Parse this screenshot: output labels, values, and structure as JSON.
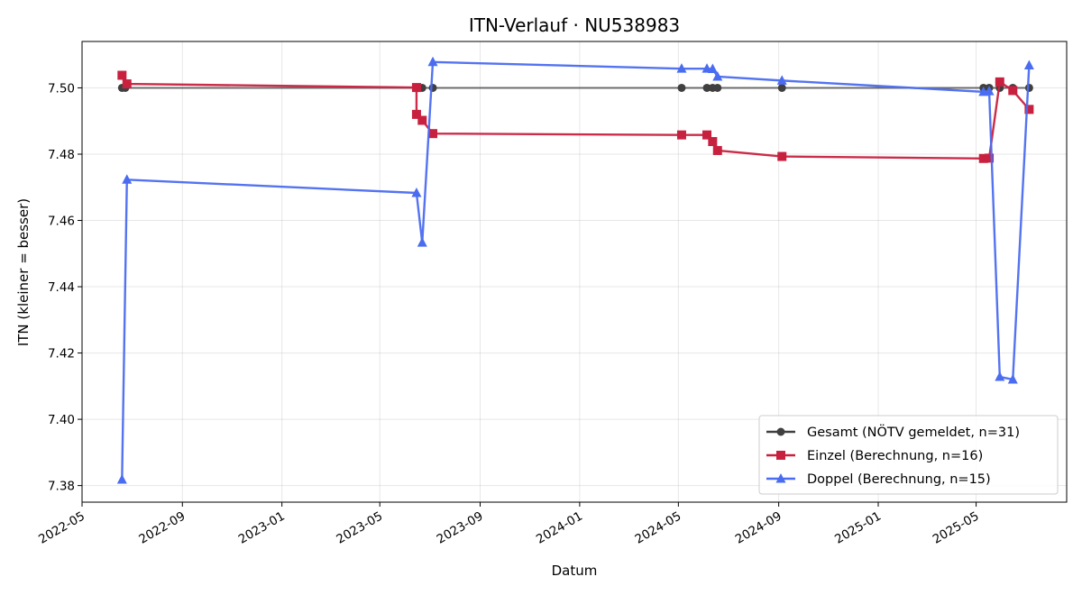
{
  "chart_data": {
    "type": "line",
    "title": "ITN-Verlauf · NU538983",
    "xlabel": "Datum",
    "ylabel": "ITN  (kleiner = besser)",
    "x_type": "date",
    "xlim": [
      "2022-05-01",
      "2025-08-20"
    ],
    "ylim": [
      7.375,
      7.514
    ],
    "x_ticks": [
      "2022-05",
      "2022-09",
      "2023-01",
      "2023-05",
      "2023-09",
      "2024-01",
      "2024-05",
      "2024-09",
      "2025-01",
      "2025-05"
    ],
    "y_ticks": [
      7.38,
      7.4,
      7.42,
      7.44,
      7.46,
      7.48,
      7.5
    ],
    "y_tick_labels": [
      "7.38",
      "7.40",
      "7.42",
      "7.44",
      "7.46",
      "7.48",
      "7.50"
    ],
    "grid": true,
    "legend_position": "bottom-right",
    "series": [
      {
        "name": "Gesamt (NÖTV gemeldet, n=31)",
        "color": "#404040",
        "marker": "circle",
        "points": [
          {
            "x": "2022-06-19",
            "y": 7.5
          },
          {
            "x": "2022-06-23",
            "y": 7.5
          },
          {
            "x": "2023-06-18",
            "y": 7.5
          },
          {
            "x": "2023-06-22",
            "y": 7.5
          },
          {
            "x": "2023-07-05",
            "y": 7.5
          },
          {
            "x": "2024-05-05",
            "y": 7.5
          },
          {
            "x": "2024-06-05",
            "y": 7.5
          },
          {
            "x": "2024-06-12",
            "y": 7.5
          },
          {
            "x": "2024-06-18",
            "y": 7.5
          },
          {
            "x": "2024-09-05",
            "y": 7.5
          },
          {
            "x": "2025-05-10",
            "y": 7.5
          },
          {
            "x": "2025-05-17",
            "y": 7.5
          },
          {
            "x": "2025-05-30",
            "y": 7.5
          },
          {
            "x": "2025-06-15",
            "y": 7.5
          },
          {
            "x": "2025-07-05",
            "y": 7.5
          }
        ]
      },
      {
        "name": "Einzel (Berechnung, n=16)",
        "color": "#c8213f",
        "marker": "square",
        "points": [
          {
            "x": "2022-06-19",
            "y": 7.5038
          },
          {
            "x": "2022-06-25",
            "y": 7.5012
          },
          {
            "x": "2023-06-15",
            "y": 7.5001
          },
          {
            "x": "2023-06-15",
            "y": 7.492
          },
          {
            "x": "2023-06-22",
            "y": 7.4902
          },
          {
            "x": "2023-07-05",
            "y": 7.4862
          },
          {
            "x": "2024-05-05",
            "y": 7.4858
          },
          {
            "x": "2024-06-05",
            "y": 7.4858
          },
          {
            "x": "2024-06-12",
            "y": 7.4838
          },
          {
            "x": "2024-06-18",
            "y": 7.4811
          },
          {
            "x": "2024-09-05",
            "y": 7.4793
          },
          {
            "x": "2025-05-10",
            "y": 7.4787
          },
          {
            "x": "2025-05-17",
            "y": 7.4788
          },
          {
            "x": "2025-05-30",
            "y": 7.5018
          },
          {
            "x": "2025-06-15",
            "y": 7.4992
          },
          {
            "x": "2025-07-05",
            "y": 7.4935
          }
        ]
      },
      {
        "name": "Doppel (Berechnung, n=15)",
        "color": "#4a6cf0",
        "marker": "triangle",
        "points": [
          {
            "x": "2022-06-19",
            "y": 7.3818
          },
          {
            "x": "2022-06-25",
            "y": 7.4723
          },
          {
            "x": "2023-06-15",
            "y": 7.4683
          },
          {
            "x": "2023-06-22",
            "y": 7.4533
          },
          {
            "x": "2023-07-05",
            "y": 7.5078
          },
          {
            "x": "2024-05-05",
            "y": 7.5058
          },
          {
            "x": "2024-06-05",
            "y": 7.5058
          },
          {
            "x": "2024-06-12",
            "y": 7.5057
          },
          {
            "x": "2024-06-18",
            "y": 7.5034
          },
          {
            "x": "2024-09-05",
            "y": 7.5022
          },
          {
            "x": "2025-05-10",
            "y": 7.4988
          },
          {
            "x": "2025-05-17",
            "y": 7.499
          },
          {
            "x": "2025-05-30",
            "y": 7.4128
          },
          {
            "x": "2025-06-15",
            "y": 7.412
          },
          {
            "x": "2025-07-05",
            "y": 7.5068
          }
        ]
      }
    ]
  }
}
